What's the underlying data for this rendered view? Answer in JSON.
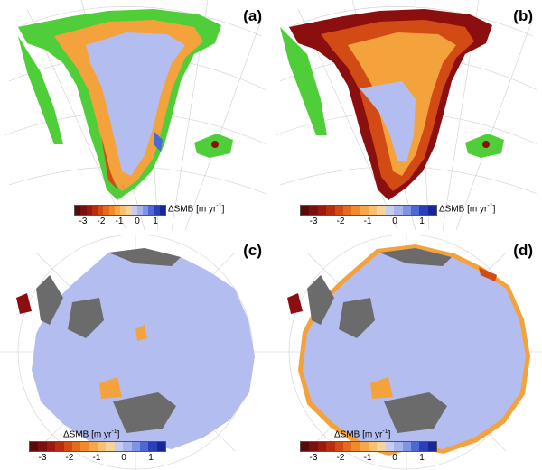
{
  "figure": {
    "panels": [
      {
        "id": "a",
        "label": "(a)",
        "region": "Greenland"
      },
      {
        "id": "b",
        "label": "(b)",
        "region": "Greenland"
      },
      {
        "id": "c",
        "label": "(c)",
        "region": "Antarctica"
      },
      {
        "id": "d",
        "label": "(d)",
        "region": "Antarctica"
      }
    ],
    "colorbar": {
      "title": "ΔSMB [m yr",
      "title_exp": "-1",
      "title_end": "]",
      "ticks": [
        "-3",
        "-2",
        "-1",
        "0",
        "1"
      ],
      "range": [
        -3.5,
        1.5
      ],
      "colors": [
        "#5a0a0a",
        "#7a1010",
        "#9a1a10",
        "#b82c10",
        "#d24a14",
        "#e46a1c",
        "#f08a2a",
        "#f6a848",
        "#f8c070",
        "#f5d39a",
        "#c8cdf0",
        "#a8b4ec",
        "#7f94e2",
        "#4e6ad2",
        "#2a40b8",
        "#18269a"
      ]
    },
    "colors": {
      "ice_neutral": "#b4bdef",
      "bare_land": "#4fce3a",
      "rock": "#6b6b6b",
      "negative_light": "#f3a23c",
      "negative_dark": "#8b0f0f",
      "grid": "#c8c8c8"
    }
  }
}
